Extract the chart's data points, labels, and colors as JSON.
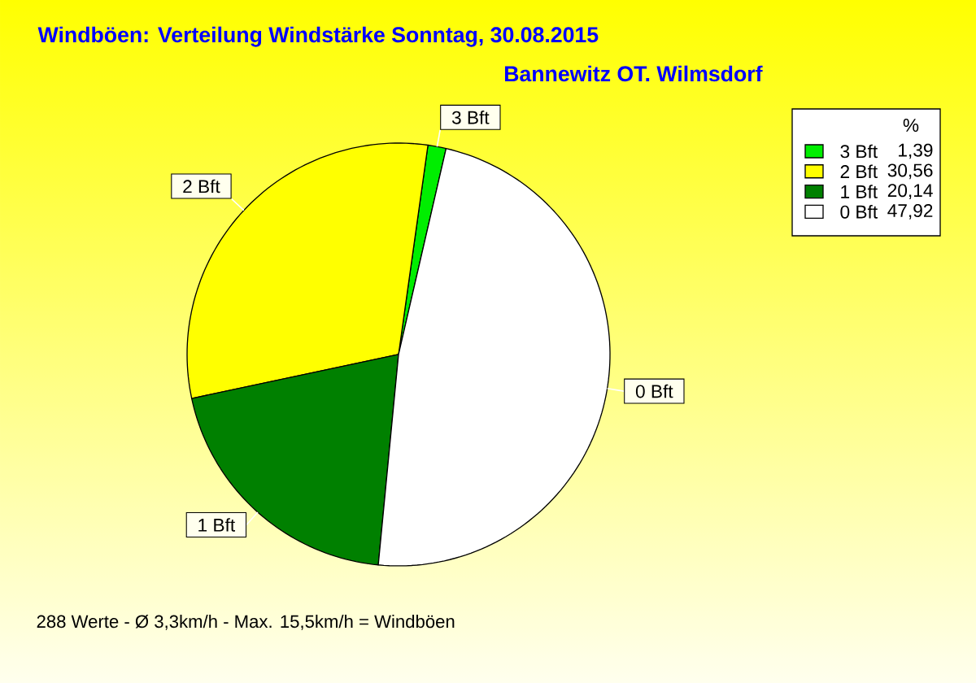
{
  "chart_data": {
    "type": "pie",
    "title": "Windböen: Verteilung Windstärke  Sonntag, 30.08.2015",
    "subtitle": "Bannewitz OT. Wilmsdorf",
    "legend_title": "%",
    "categories": [
      "3 Bft",
      "2 Bft",
      "1 Bft",
      "0 Bft"
    ],
    "values": [
      1.39,
      30.56,
      20.14,
      47.92
    ],
    "value_labels": [
      "1,39",
      "30,56",
      "20,14",
      "47,92"
    ],
    "colors": [
      "#00ee00",
      "#ffff00",
      "#008000",
      "#ffffff"
    ],
    "legend": "top right",
    "annotations": [
      "288 Werte - Ø 3,3km/h - Max. 15,5km/h = Windböen"
    ]
  }
}
